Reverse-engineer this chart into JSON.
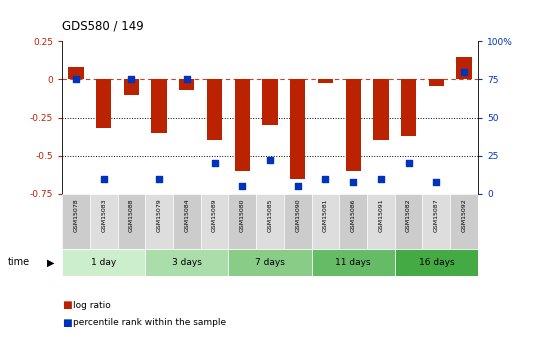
{
  "title": "GDS580 / 149",
  "samples": [
    "GSM15078",
    "GSM15083",
    "GSM15088",
    "GSM15079",
    "GSM15084",
    "GSM15089",
    "GSM15080",
    "GSM15085",
    "GSM15090",
    "GSM15081",
    "GSM15086",
    "GSM15091",
    "GSM15082",
    "GSM15087",
    "GSM15092"
  ],
  "log_ratio": [
    0.08,
    -0.32,
    -0.1,
    -0.35,
    -0.07,
    -0.4,
    -0.6,
    -0.3,
    -0.65,
    -0.02,
    -0.6,
    -0.4,
    -0.37,
    -0.04,
    0.15
  ],
  "percentile_rank": [
    75,
    10,
    75,
    10,
    75,
    20,
    5,
    22,
    5,
    10,
    8,
    10,
    20,
    8,
    80
  ],
  "groups": [
    {
      "label": "1 day",
      "count": 3,
      "color": "#cceecc"
    },
    {
      "label": "3 days",
      "count": 3,
      "color": "#aaddaa"
    },
    {
      "label": "7 days",
      "count": 3,
      "color": "#88cc88"
    },
    {
      "label": "11 days",
      "count": 3,
      "color": "#66bb66"
    },
    {
      "label": "16 days",
      "count": 3,
      "color": "#44aa44"
    }
  ],
  "bar_color": "#bb2200",
  "dot_color": "#0033bb",
  "ylim_main": [
    -0.75,
    0.25
  ],
  "yticks_main": [
    -0.75,
    -0.5,
    -0.25,
    0,
    0.25
  ],
  "ytick_labels": [
    "-0.75",
    "-0.5",
    "-0.25",
    "0",
    "0.25"
  ],
  "y2ticks_pct": [
    0,
    25,
    50,
    75,
    100
  ],
  "y2tick_labels": [
    "0",
    "25",
    "50",
    "75",
    "100%"
  ],
  "hline_dotted": [
    -0.25,
    -0.5
  ],
  "box_colors": [
    "#cccccc",
    "#dddddd"
  ],
  "background_color": "#ffffff"
}
